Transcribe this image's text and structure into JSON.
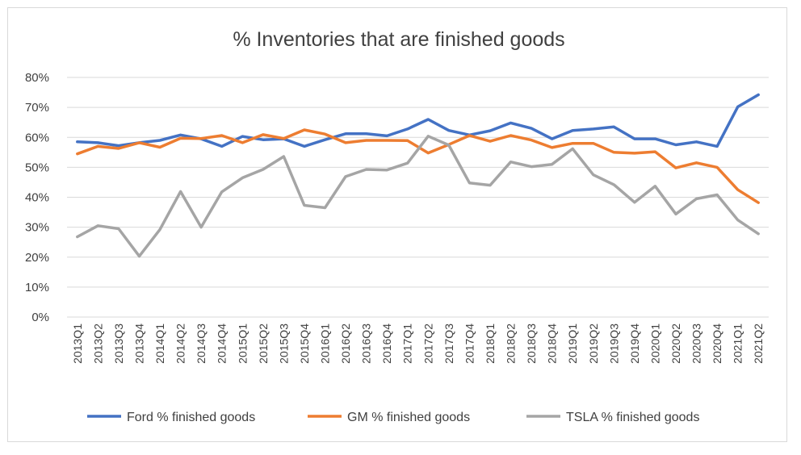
{
  "chart_data": {
    "type": "line",
    "title": "% Inventories that are finished goods",
    "xlabel": "",
    "ylabel": "",
    "ylim": [
      0,
      80
    ],
    "yticks": [
      "0%",
      "10%",
      "20%",
      "30%",
      "40%",
      "50%",
      "60%",
      "70%",
      "80%"
    ],
    "grid": true,
    "legend": "bottom",
    "categories": [
      "2013Q1",
      "2013Q2",
      "2013Q3",
      "2013Q4",
      "2014Q1",
      "2014Q2",
      "2014Q3",
      "2014Q4",
      "2015Q1",
      "2015Q2",
      "2015Q3",
      "2015Q4",
      "2016Q1",
      "2016Q2",
      "2016Q3",
      "2016Q4",
      "2017Q1",
      "2017Q2",
      "2017Q3",
      "2017Q4",
      "2018Q1",
      "2018Q2",
      "2018Q3",
      "2018Q4",
      "2019Q1",
      "2019Q2",
      "2019Q3",
      "2019Q4",
      "2020Q1",
      "2020Q2",
      "2020Q3",
      "2020Q4",
      "2021Q1",
      "2021Q2"
    ],
    "series": [
      {
        "name": "Ford % finished goods",
        "color": "#4472c4",
        "values": [
          58.5,
          58.2,
          57.2,
          58.2,
          59.0,
          60.8,
          59.5,
          57.0,
          60.3,
          59.2,
          59.5,
          57.0,
          59.2,
          61.2,
          61.2,
          60.5,
          62.8,
          66.0,
          62.3,
          60.8,
          62.2,
          64.8,
          63.0,
          59.5,
          62.3,
          62.8,
          63.5,
          59.5,
          59.5,
          57.5,
          58.5,
          57.0,
          70.2,
          74.2
        ]
      },
      {
        "name": "GM % finished goods",
        "color": "#ed7d31",
        "values": [
          54.5,
          57.0,
          56.3,
          58.2,
          56.7,
          59.7,
          59.6,
          60.6,
          58.2,
          60.9,
          59.6,
          62.5,
          61.1,
          58.2,
          59.0,
          59.0,
          58.9,
          54.8,
          57.6,
          60.6,
          58.7,
          60.6,
          59.1,
          56.6,
          58.0,
          58.0,
          55.0,
          54.7,
          55.2,
          49.8,
          51.5,
          50.0,
          42.5,
          38.2
        ]
      },
      {
        "name": "TSLA % finished goods",
        "color": "#a5a5a5",
        "values": [
          26.8,
          30.5,
          29.5,
          20.3,
          29.2,
          41.9,
          30.0,
          41.8,
          46.5,
          49.3,
          53.6,
          37.3,
          36.5,
          46.9,
          49.3,
          49.1,
          51.4,
          60.4,
          57.4,
          44.8,
          44.0,
          51.8,
          50.2,
          51.0,
          56.2,
          47.5,
          44.2,
          38.3,
          43.7,
          34.4,
          39.5,
          40.8,
          32.4,
          27.8
        ]
      }
    ]
  }
}
